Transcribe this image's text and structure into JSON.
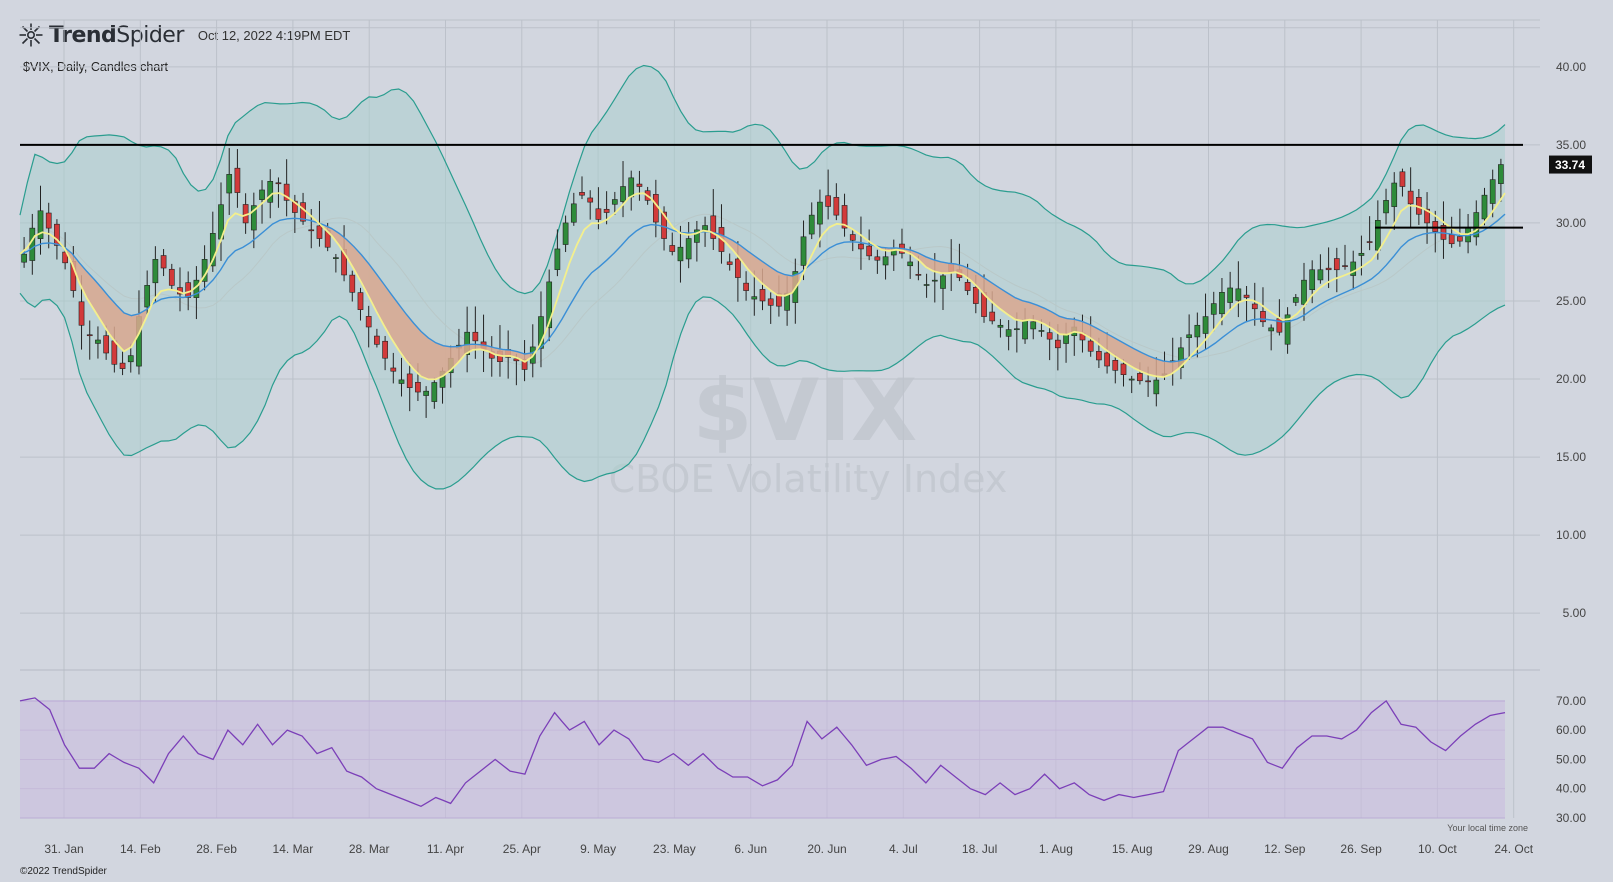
{
  "header": {
    "brand_bold": "Trend",
    "brand_light": "Spider",
    "timestamp": "Oct 12, 2022 4:19PM EDT",
    "symbol_line": "$VIX, Daily, Candles chart"
  },
  "footer": {
    "copyright": "©2022 TrendSpider",
    "timezone_note": "Your local time zone"
  },
  "watermark": {
    "symbol": "$VIX",
    "name": "CBOE Volatility Index"
  },
  "colors": {
    "background": "#d2d6df",
    "up_candle": "#2e8b3a",
    "down_candle": "#d23a3a",
    "band_fill": "#a9cfcd",
    "band_line": "#2a9d8f",
    "ema_fast": "#f3ef8d",
    "ema_slow": "#3b8fd6",
    "cloud_fill": "#d9a88f",
    "rsi_line": "#7b3fb8",
    "rsi_band": "#c9bce0",
    "level_line": "#000000"
  },
  "chart_data": [
    {
      "type": "candlestick",
      "title": "$VIX, Daily, Candles chart",
      "x_labels": [
        "31. Jan",
        "14. Feb",
        "28. Feb",
        "14. Mar",
        "28. Mar",
        "11. Apr",
        "25. Apr",
        "9. May",
        "23. May",
        "6. Jun",
        "20. Jun",
        "4. Jul",
        "18. Jul",
        "1. Aug",
        "15. Aug",
        "29. Aug",
        "12. Sep",
        "26. Sep",
        "10. Oct",
        "24. Oct"
      ],
      "ylim": [
        2,
        43
      ],
      "yticks": [
        "40.00",
        "35.00",
        "30.00",
        "25.00",
        "20.00",
        "15.00",
        "10.00",
        "5.00"
      ],
      "last_price": "33.74",
      "horizontal_levels": [
        35,
        29.7
      ],
      "overlays": [
        "Bollinger Bands",
        "EMA fast",
        "EMA slow"
      ],
      "close_path": [
        [
          0,
          28
        ],
        [
          2,
          31
        ],
        [
          4,
          29
        ],
        [
          6,
          27
        ],
        [
          8,
          23
        ],
        [
          10,
          22.5
        ],
        [
          12,
          21
        ],
        [
          14,
          20.5
        ],
        [
          16,
          25
        ],
        [
          18,
          28
        ],
        [
          20,
          26
        ],
        [
          22,
          25
        ],
        [
          24,
          27
        ],
        [
          26,
          30
        ],
        [
          28,
          33.5
        ],
        [
          30,
          30
        ],
        [
          32,
          32
        ],
        [
          34,
          33
        ],
        [
          36,
          31
        ],
        [
          38,
          30
        ],
        [
          40,
          29
        ],
        [
          42,
          28
        ],
        [
          44,
          26
        ],
        [
          46,
          24
        ],
        [
          48,
          22
        ],
        [
          50,
          20.5
        ],
        [
          52,
          19.5
        ],
        [
          54,
          19
        ],
        [
          56,
          20
        ],
        [
          58,
          21.5
        ],
        [
          60,
          23
        ],
        [
          62,
          22
        ],
        [
          64,
          21
        ],
        [
          66,
          21.5
        ],
        [
          68,
          20.5
        ],
        [
          70,
          24
        ],
        [
          72,
          28
        ],
        [
          74,
          31
        ],
        [
          76,
          32
        ],
        [
          78,
          30
        ],
        [
          80,
          31.5
        ],
        [
          82,
          33
        ],
        [
          84,
          32
        ],
        [
          86,
          29.5
        ],
        [
          88,
          28
        ],
        [
          90,
          29
        ],
        [
          92,
          30
        ],
        [
          94,
          28.5
        ],
        [
          96,
          27
        ],
        [
          98,
          25.5
        ],
        [
          100,
          25
        ],
        [
          102,
          24.5
        ],
        [
          104,
          26
        ],
        [
          106,
          30
        ],
        [
          108,
          31.5
        ],
        [
          110,
          30.5
        ],
        [
          112,
          29
        ],
        [
          114,
          28
        ],
        [
          116,
          27.5
        ],
        [
          118,
          28.5
        ],
        [
          120,
          27.5
        ],
        [
          122,
          26
        ],
        [
          124,
          26.5
        ],
        [
          126,
          27
        ],
        [
          128,
          25.5
        ],
        [
          130,
          24
        ],
        [
          132,
          23.5
        ],
        [
          134,
          23
        ],
        [
          136,
          24
        ],
        [
          138,
          23
        ],
        [
          140,
          22
        ],
        [
          142,
          23.5
        ],
        [
          144,
          22
        ],
        [
          146,
          21
        ],
        [
          148,
          20.5
        ],
        [
          150,
          20
        ],
        [
          152,
          19.8
        ],
        [
          154,
          20
        ],
        [
          156,
          21.5
        ],
        [
          158,
          23
        ],
        [
          160,
          24
        ],
        [
          162,
          25.5
        ],
        [
          164,
          26
        ],
        [
          166,
          25
        ],
        [
          168,
          23.5
        ],
        [
          170,
          23
        ],
        [
          172,
          25
        ],
        [
          174,
          27
        ],
        [
          176,
          27
        ],
        [
          178,
          27
        ],
        [
          180,
          27.5
        ],
        [
          182,
          28.5
        ],
        [
          184,
          31
        ],
        [
          186,
          33
        ],
        [
          188,
          31
        ],
        [
          190,
          30
        ],
        [
          192,
          29
        ],
        [
          194,
          28.5
        ],
        [
          196,
          30
        ],
        [
          198,
          32
        ],
        [
          200,
          33.74
        ]
      ]
    },
    {
      "type": "line",
      "title": "RSI",
      "yticks": [
        "70.00",
        "60.00",
        "50.00",
        "40.00",
        "30.00"
      ],
      "ylim": [
        30,
        72
      ],
      "overbought": 70,
      "oversold": 30,
      "rsi_path": [
        [
          0,
          70
        ],
        [
          2,
          71
        ],
        [
          4,
          67
        ],
        [
          6,
          55
        ],
        [
          8,
          47
        ],
        [
          10,
          47
        ],
        [
          12,
          52
        ],
        [
          14,
          49
        ],
        [
          16,
          47
        ],
        [
          18,
          42
        ],
        [
          20,
          52
        ],
        [
          22,
          58
        ],
        [
          24,
          52
        ],
        [
          26,
          50
        ],
        [
          28,
          60
        ],
        [
          30,
          55
        ],
        [
          32,
          62
        ],
        [
          34,
          55
        ],
        [
          36,
          60
        ],
        [
          38,
          58
        ],
        [
          40,
          52
        ],
        [
          42,
          54
        ],
        [
          44,
          46
        ],
        [
          46,
          44
        ],
        [
          48,
          40
        ],
        [
          50,
          38
        ],
        [
          52,
          36
        ],
        [
          54,
          34
        ],
        [
          56,
          37
        ],
        [
          58,
          35
        ],
        [
          60,
          42
        ],
        [
          62,
          46
        ],
        [
          64,
          50
        ],
        [
          66,
          46
        ],
        [
          68,
          45
        ],
        [
          70,
          58
        ],
        [
          72,
          66
        ],
        [
          74,
          60
        ],
        [
          76,
          63
        ],
        [
          78,
          55
        ],
        [
          80,
          60
        ],
        [
          82,
          57
        ],
        [
          84,
          50
        ],
        [
          86,
          49
        ],
        [
          88,
          52
        ],
        [
          90,
          48
        ],
        [
          92,
          52
        ],
        [
          94,
          47
        ],
        [
          96,
          44
        ],
        [
          98,
          44
        ],
        [
          100,
          41
        ],
        [
          102,
          43
        ],
        [
          104,
          48
        ],
        [
          106,
          63
        ],
        [
          108,
          57
        ],
        [
          110,
          61
        ],
        [
          112,
          55
        ],
        [
          114,
          48
        ],
        [
          116,
          50
        ],
        [
          118,
          51
        ],
        [
          120,
          47
        ],
        [
          122,
          42
        ],
        [
          124,
          48
        ],
        [
          126,
          44
        ],
        [
          128,
          40
        ],
        [
          130,
          38
        ],
        [
          132,
          42
        ],
        [
          134,
          38
        ],
        [
          136,
          40
        ],
        [
          138,
          45
        ],
        [
          140,
          40
        ],
        [
          142,
          42
        ],
        [
          144,
          38
        ],
        [
          146,
          36
        ],
        [
          148,
          38
        ],
        [
          150,
          37
        ],
        [
          152,
          38
        ],
        [
          154,
          39
        ],
        [
          156,
          53
        ],
        [
          158,
          57
        ],
        [
          160,
          61
        ],
        [
          162,
          61
        ],
        [
          164,
          59
        ],
        [
          166,
          57
        ],
        [
          168,
          49
        ],
        [
          170,
          47
        ],
        [
          172,
          54
        ],
        [
          174,
          58
        ],
        [
          176,
          58
        ],
        [
          178,
          57
        ],
        [
          180,
          60
        ],
        [
          182,
          66
        ],
        [
          184,
          70
        ],
        [
          186,
          62
        ],
        [
          188,
          61
        ],
        [
          190,
          56
        ],
        [
          192,
          53
        ],
        [
          194,
          58
        ],
        [
          196,
          62
        ],
        [
          198,
          65
        ],
        [
          200,
          66
        ]
      ]
    }
  ]
}
